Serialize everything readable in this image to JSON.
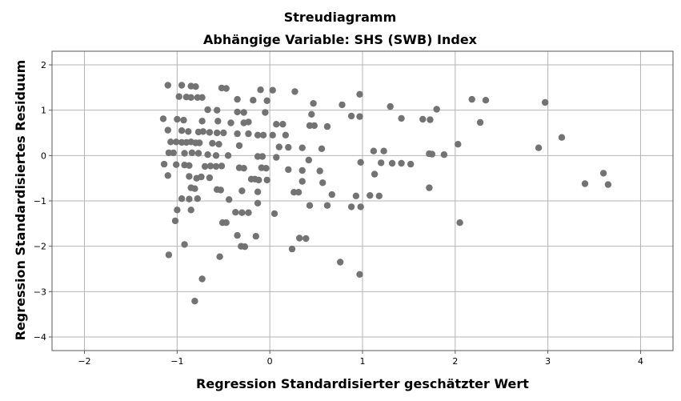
{
  "chart_data": {
    "type": "scatter",
    "title": "Streudiagramm",
    "subtitle": "Abhängige Variable: SHS (SWB) Index",
    "xlabel": "Regression Standardisierter geschätzter Wert",
    "ylabel": "Regression Standardisiertes Residuum",
    "xlim": [
      -2.35,
      4.35
    ],
    "ylim": [
      -4.3,
      2.3
    ],
    "xticks": [
      -2,
      -1,
      0,
      1,
      2,
      3,
      4
    ],
    "yticks": [
      2,
      1,
      0,
      -1,
      -2,
      -3,
      -4
    ],
    "x_tick_labels": [
      "−2",
      "−1",
      "0",
      "1",
      "2",
      "3",
      "4"
    ],
    "y_tick_labels": [
      "2",
      "1",
      "0",
      "−1",
      "−2",
      "−3",
      "−4"
    ],
    "grid": true,
    "legend": "none",
    "marker_color": "#737373",
    "points": [
      [
        -1.1,
        1.55
      ],
      [
        -0.95,
        1.55
      ],
      [
        -0.85,
        1.53
      ],
      [
        -0.8,
        1.52
      ],
      [
        -0.52,
        1.49
      ],
      [
        -0.47,
        1.48
      ],
      [
        -0.1,
        1.45
      ],
      [
        0.03,
        1.44
      ],
      [
        0.27,
        1.41
      ],
      [
        0.97,
        1.35
      ],
      [
        -0.98,
        1.3
      ],
      [
        -0.9,
        1.29
      ],
      [
        -0.85,
        1.28
      ],
      [
        -0.78,
        1.28
      ],
      [
        -0.73,
        1.28
      ],
      [
        -0.35,
        1.24
      ],
      [
        -0.18,
        1.22
      ],
      [
        -0.03,
        1.21
      ],
      [
        0.47,
        1.15
      ],
      [
        0.78,
        1.12
      ],
      [
        1.3,
        1.08
      ],
      [
        1.8,
        1.02
      ],
      [
        2.18,
        1.24
      ],
      [
        2.33,
        1.22
      ],
      [
        2.97,
        1.17
      ],
      [
        -0.67,
        1.01
      ],
      [
        -0.57,
        1.0
      ],
      [
        -0.35,
        0.96
      ],
      [
        -0.28,
        0.95
      ],
      [
        -0.05,
        0.95
      ],
      [
        0.45,
        0.91
      ],
      [
        0.88,
        0.87
      ],
      [
        0.97,
        0.86
      ],
      [
        1.42,
        0.82
      ],
      [
        1.65,
        0.8
      ],
      [
        1.73,
        0.79
      ],
      [
        2.27,
        0.73
      ],
      [
        -1.15,
        0.81
      ],
      [
        -1.0,
        0.8
      ],
      [
        -0.93,
        0.78
      ],
      [
        -0.73,
        0.76
      ],
      [
        -0.56,
        0.76
      ],
      [
        -0.42,
        0.72
      ],
      [
        -0.28,
        0.72
      ],
      [
        -0.23,
        0.74
      ],
      [
        0.07,
        0.69
      ],
      [
        0.14,
        0.69
      ],
      [
        0.43,
        0.66
      ],
      [
        0.48,
        0.66
      ],
      [
        0.62,
        0.64
      ],
      [
        -1.1,
        0.56
      ],
      [
        -0.95,
        0.55
      ],
      [
        -0.88,
        0.53
      ],
      [
        -0.77,
        0.52
      ],
      [
        -0.72,
        0.53
      ],
      [
        -0.65,
        0.51
      ],
      [
        -0.57,
        0.5
      ],
      [
        -0.5,
        0.5
      ],
      [
        -0.35,
        0.48
      ],
      [
        -0.23,
        0.48
      ],
      [
        -0.13,
        0.45
      ],
      [
        -0.07,
        0.45
      ],
      [
        0.03,
        0.45
      ],
      [
        0.17,
        0.45
      ],
      [
        -1.07,
        0.3
      ],
      [
        -1.01,
        0.3
      ],
      [
        -0.95,
        0.29
      ],
      [
        -0.9,
        0.29
      ],
      [
        -0.85,
        0.3
      ],
      [
        -0.8,
        0.28
      ],
      [
        -0.76,
        0.28
      ],
      [
        -0.62,
        0.27
      ],
      [
        -0.55,
        0.25
      ],
      [
        -0.33,
        0.22
      ],
      [
        0.1,
        0.19
      ],
      [
        0.2,
        0.18
      ],
      [
        0.35,
        0.17
      ],
      [
        0.56,
        0.15
      ],
      [
        1.12,
        0.1
      ],
      [
        1.23,
        0.1
      ],
      [
        2.03,
        0.25
      ],
      [
        2.9,
        0.17
      ],
      [
        3.15,
        0.4
      ],
      [
        -1.09,
        0.06
      ],
      [
        -1.04,
        0.06
      ],
      [
        -0.92,
        0.05
      ],
      [
        -0.84,
        0.06
      ],
      [
        -0.77,
        0.05
      ],
      [
        -0.67,
        0.02
      ],
      [
        -0.58,
        0.0
      ],
      [
        -0.45,
        0.0
      ],
      [
        -0.13,
        -0.02
      ],
      [
        -0.08,
        -0.02
      ],
      [
        0.07,
        -0.04
      ],
      [
        0.42,
        -0.1
      ],
      [
        0.98,
        -0.15
      ],
      [
        1.2,
        -0.16
      ],
      [
        1.32,
        -0.17
      ],
      [
        1.42,
        -0.17
      ],
      [
        1.52,
        -0.19
      ],
      [
        1.72,
        0.04
      ],
      [
        1.75,
        0.03
      ],
      [
        1.88,
        0.02
      ],
      [
        -1.14,
        -0.19
      ],
      [
        -1.01,
        -0.2
      ],
      [
        -0.92,
        -0.21
      ],
      [
        -0.87,
        -0.22
      ],
      [
        -0.7,
        -0.24
      ],
      [
        -0.64,
        -0.23
      ],
      [
        -0.58,
        -0.24
      ],
      [
        -0.52,
        -0.23
      ],
      [
        -0.33,
        -0.27
      ],
      [
        -0.28,
        -0.28
      ],
      [
        -0.09,
        -0.27
      ],
      [
        -0.04,
        -0.28
      ],
      [
        0.2,
        -0.31
      ],
      [
        0.35,
        -0.33
      ],
      [
        0.54,
        -0.34
      ],
      [
        1.13,
        -0.41
      ],
      [
        -1.1,
        -0.44
      ],
      [
        -0.87,
        -0.46
      ],
      [
        -0.79,
        -0.5
      ],
      [
        -0.74,
        -0.47
      ],
      [
        -0.65,
        -0.49
      ],
      [
        -0.2,
        -0.52
      ],
      [
        -0.16,
        -0.52
      ],
      [
        -0.12,
        -0.54
      ],
      [
        -0.03,
        -0.54
      ],
      [
        0.35,
        -0.57
      ],
      [
        0.57,
        -0.6
      ],
      [
        3.4,
        -0.62
      ],
      [
        3.6,
        -0.39
      ],
      [
        3.65,
        -0.64
      ],
      [
        -0.85,
        -0.71
      ],
      [
        -0.81,
        -0.73
      ],
      [
        -0.57,
        -0.75
      ],
      [
        -0.53,
        -0.76
      ],
      [
        -0.3,
        -0.78
      ],
      [
        -0.13,
        -0.8
      ],
      [
        0.26,
        -0.81
      ],
      [
        0.31,
        -0.81
      ],
      [
        1.72,
        -0.71
      ],
      [
        -0.95,
        -0.95
      ],
      [
        -0.87,
        -0.96
      ],
      [
        -0.78,
        -0.95
      ],
      [
        -0.44,
        -0.97
      ],
      [
        0.67,
        -0.86
      ],
      [
        0.93,
        -0.89
      ],
      [
        1.08,
        -0.88
      ],
      [
        1.18,
        -0.89
      ],
      [
        -0.85,
        -1.2
      ],
      [
        -1.0,
        -1.2
      ],
      [
        -0.37,
        -1.25
      ],
      [
        -0.3,
        -1.26
      ],
      [
        -0.23,
        -1.26
      ],
      [
        -0.13,
        -1.05
      ],
      [
        0.05,
        -1.28
      ],
      [
        0.43,
        -1.1
      ],
      [
        0.62,
        -1.1
      ],
      [
        0.88,
        -1.13
      ],
      [
        0.98,
        -1.13
      ],
      [
        -1.02,
        -1.44
      ],
      [
        -0.51,
        -1.48
      ],
      [
        -0.47,
        -1.48
      ],
      [
        2.05,
        -1.48
      ],
      [
        -0.35,
        -1.76
      ],
      [
        -0.15,
        -1.78
      ],
      [
        0.32,
        -1.82
      ],
      [
        0.39,
        -1.83
      ],
      [
        -0.92,
        -1.96
      ],
      [
        -0.27,
        -2.01
      ],
      [
        -0.31,
        -2.0
      ],
      [
        0.24,
        -2.06
      ],
      [
        -0.54,
        -2.23
      ],
      [
        -1.09,
        -2.19
      ],
      [
        0.76,
        -2.35
      ],
      [
        0.97,
        -2.62
      ],
      [
        -0.73,
        -2.72
      ],
      [
        -0.81,
        -3.21
      ]
    ]
  }
}
